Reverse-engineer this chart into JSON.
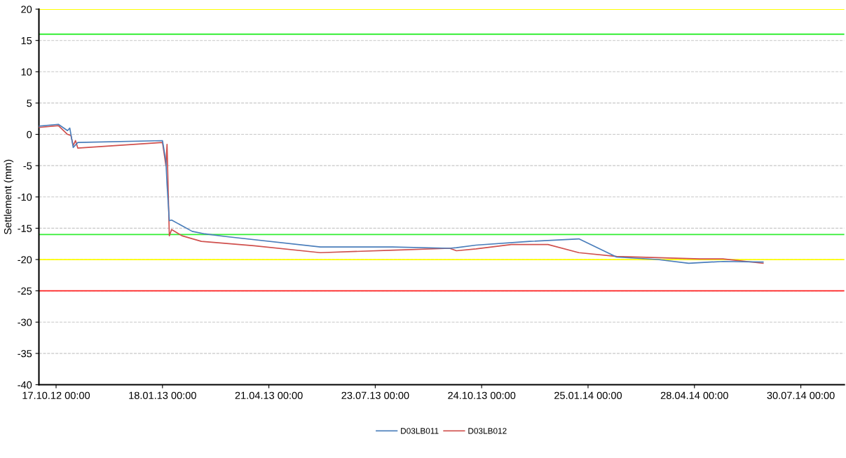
{
  "chart_data": {
    "type": "line",
    "ylabel": "Settlement (mm)",
    "xlim": [
      "2012-10-02",
      "2014-09-06"
    ],
    "xticks": [
      {
        "value": "2012-10-17",
        "label": "17.10.12 00:00"
      },
      {
        "value": "2013-01-18",
        "label": "18.01.13 00:00"
      },
      {
        "value": "2013-04-21",
        "label": "21.04.13 00:00"
      },
      {
        "value": "2013-07-23",
        "label": "23.07.13 00:00"
      },
      {
        "value": "2013-10-24",
        "label": "24.10.13 00:00"
      },
      {
        "value": "2014-01-25",
        "label": "25.01.14 00:00"
      },
      {
        "value": "2014-04-28",
        "label": "28.04.14 00:00"
      },
      {
        "value": "2014-07-30",
        "label": "30.07.14 00:00"
      }
    ],
    "ylim": [
      -40,
      20
    ],
    "yticks": [
      -40,
      -35,
      -30,
      -25,
      -20,
      -15,
      -10,
      -5,
      0,
      5,
      10,
      15,
      20
    ],
    "grid": "y",
    "legend": "bottom",
    "line_style": "solid",
    "ref_lines": [
      {
        "axis": "y",
        "value": 20,
        "color": "#ffff00"
      },
      {
        "axis": "y",
        "value": 16,
        "color": "#33ee33"
      },
      {
        "axis": "y",
        "value": -16,
        "color": "#33ee33"
      },
      {
        "axis": "y",
        "value": -20,
        "color": "#ffff00"
      },
      {
        "axis": "y",
        "value": -25,
        "color": "#ff2020"
      }
    ],
    "series": [
      {
        "name": "D03LB011",
        "color": "#4a7ebb",
        "x": [
          "2012-10-02",
          "2012-10-19",
          "2012-10-27",
          "2012-10-29",
          "2012-11-01",
          "2012-11-05",
          "2013-01-18",
          "2013-01-21",
          "2013-01-22",
          "2013-01-24",
          "2013-01-26",
          "2013-02-13",
          "2013-02-24",
          "2013-03-13",
          "2013-06-05",
          "2013-08-07",
          "2013-09-26",
          "2013-10-02",
          "2013-10-19",
          "2013-12-05",
          "2014-01-17",
          "2014-02-19",
          "2014-03-27",
          "2014-04-23",
          "2014-05-23",
          "2014-06-27"
        ],
        "values": [
          1.3,
          1.6,
          0.6,
          1.0,
          -2.1,
          -1.3,
          -1.0,
          -4.3,
          -8.0,
          -13.8,
          -13.7,
          -15.5,
          -15.9,
          -16.3,
          -18.0,
          -18.0,
          -18.2,
          -18.1,
          -17.7,
          -17.1,
          -16.7,
          -19.6,
          -20.0,
          -20.6,
          -20.3,
          -20.4
        ]
      },
      {
        "name": "D03LB012",
        "color": "#d0504d",
        "x": [
          "2012-10-02",
          "2012-10-19",
          "2012-10-27",
          "2012-10-30",
          "2012-11-01",
          "2012-11-03",
          "2012-11-05",
          "2013-01-18",
          "2013-01-21",
          "2013-01-22",
          "2013-01-24",
          "2013-01-26",
          "2013-02-04",
          "2013-02-21",
          "2013-04-08",
          "2013-06-05",
          "2013-08-09",
          "2013-09-26",
          "2013-10-02",
          "2013-10-19",
          "2013-11-19",
          "2013-12-21",
          "2014-01-17",
          "2014-02-19",
          "2014-05-03",
          "2014-05-23",
          "2014-06-27"
        ],
        "values": [
          1.1,
          1.4,
          0.0,
          -0.2,
          -1.8,
          -1.0,
          -2.2,
          -1.3,
          -5.0,
          -1.6,
          -16.2,
          -15.2,
          -16.2,
          -17.1,
          -17.8,
          -18.9,
          -18.5,
          -18.2,
          -18.6,
          -18.3,
          -17.6,
          -17.6,
          -18.9,
          -19.5,
          -19.9,
          -19.9,
          -20.6
        ]
      }
    ]
  }
}
